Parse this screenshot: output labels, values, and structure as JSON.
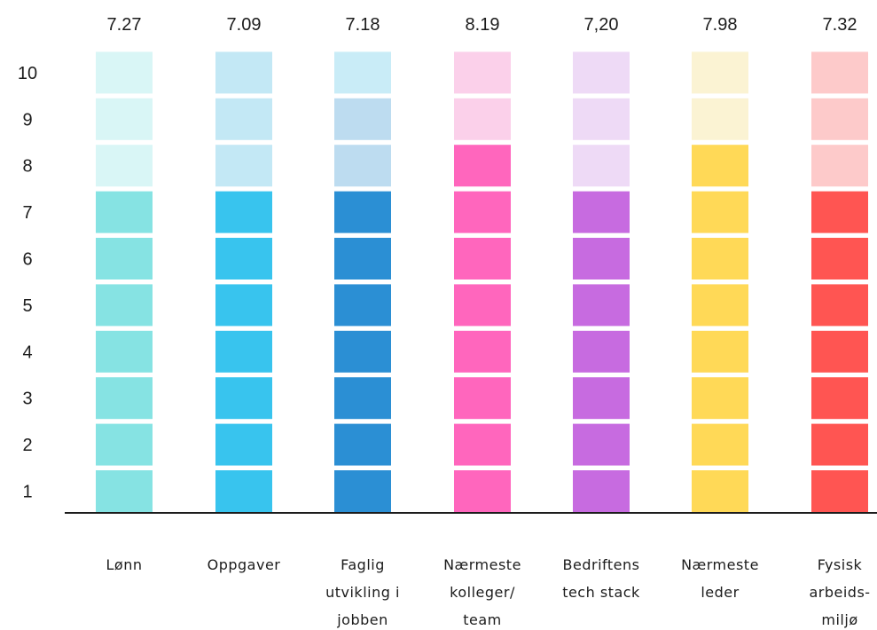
{
  "chart_data": {
    "type": "bar",
    "title": "",
    "xlabel": "",
    "ylabel": "",
    "ylim": [
      0,
      10
    ],
    "y_ticks": [
      "1",
      "2",
      "3",
      "4",
      "5",
      "6",
      "7",
      "8",
      "9",
      "10"
    ],
    "categories": [
      {
        "label_lines": [
          "Lønn"
        ],
        "value": 7.27,
        "value_label": "7.27",
        "filled_blocks": 7,
        "color_full": "#86e3e3",
        "color_light": "#d9f6f6"
      },
      {
        "label_lines": [
          "Oppgaver"
        ],
        "value": 7.09,
        "value_label": "7.09",
        "filled_blocks": 7,
        "color_full": "#38c4ee",
        "color_light": "#c3e8f5"
      },
      {
        "label_lines": [
          "Faglig",
          "utvikling i",
          "jobben"
        ],
        "value": 7.18,
        "value_label": "7.18",
        "filled_blocks": 7,
        "color_full": "#2b8fd4",
        "color_light": "#bddcf0",
        "color_top": "#c9ecf7"
      },
      {
        "label_lines": [
          "Nærmeste",
          "kolleger/",
          "team"
        ],
        "value": 8.19,
        "value_label": "8.19",
        "filled_blocks": 8,
        "color_full": "#ff66bd",
        "color_light": "#fbd0ea"
      },
      {
        "label_lines": [
          "Bedriftens",
          "tech stack"
        ],
        "value": 7.2,
        "value_label": "7,20",
        "filled_blocks": 7,
        "color_full": "#c76be0",
        "color_light": "#eedaf6"
      },
      {
        "label_lines": [
          "Nærmeste",
          "leder"
        ],
        "value": 7.98,
        "value_label": "7.98",
        "filled_blocks": 8,
        "color_full": "#ffd957",
        "color_light": "#fbf3d3"
      },
      {
        "label_lines": [
          "Fysisk",
          "arbeids-",
          "miljø"
        ],
        "value": 7.32,
        "value_label": "7.32",
        "filled_blocks": 7,
        "color_full": "#ff5552",
        "color_light": "#fdcaca"
      }
    ]
  }
}
